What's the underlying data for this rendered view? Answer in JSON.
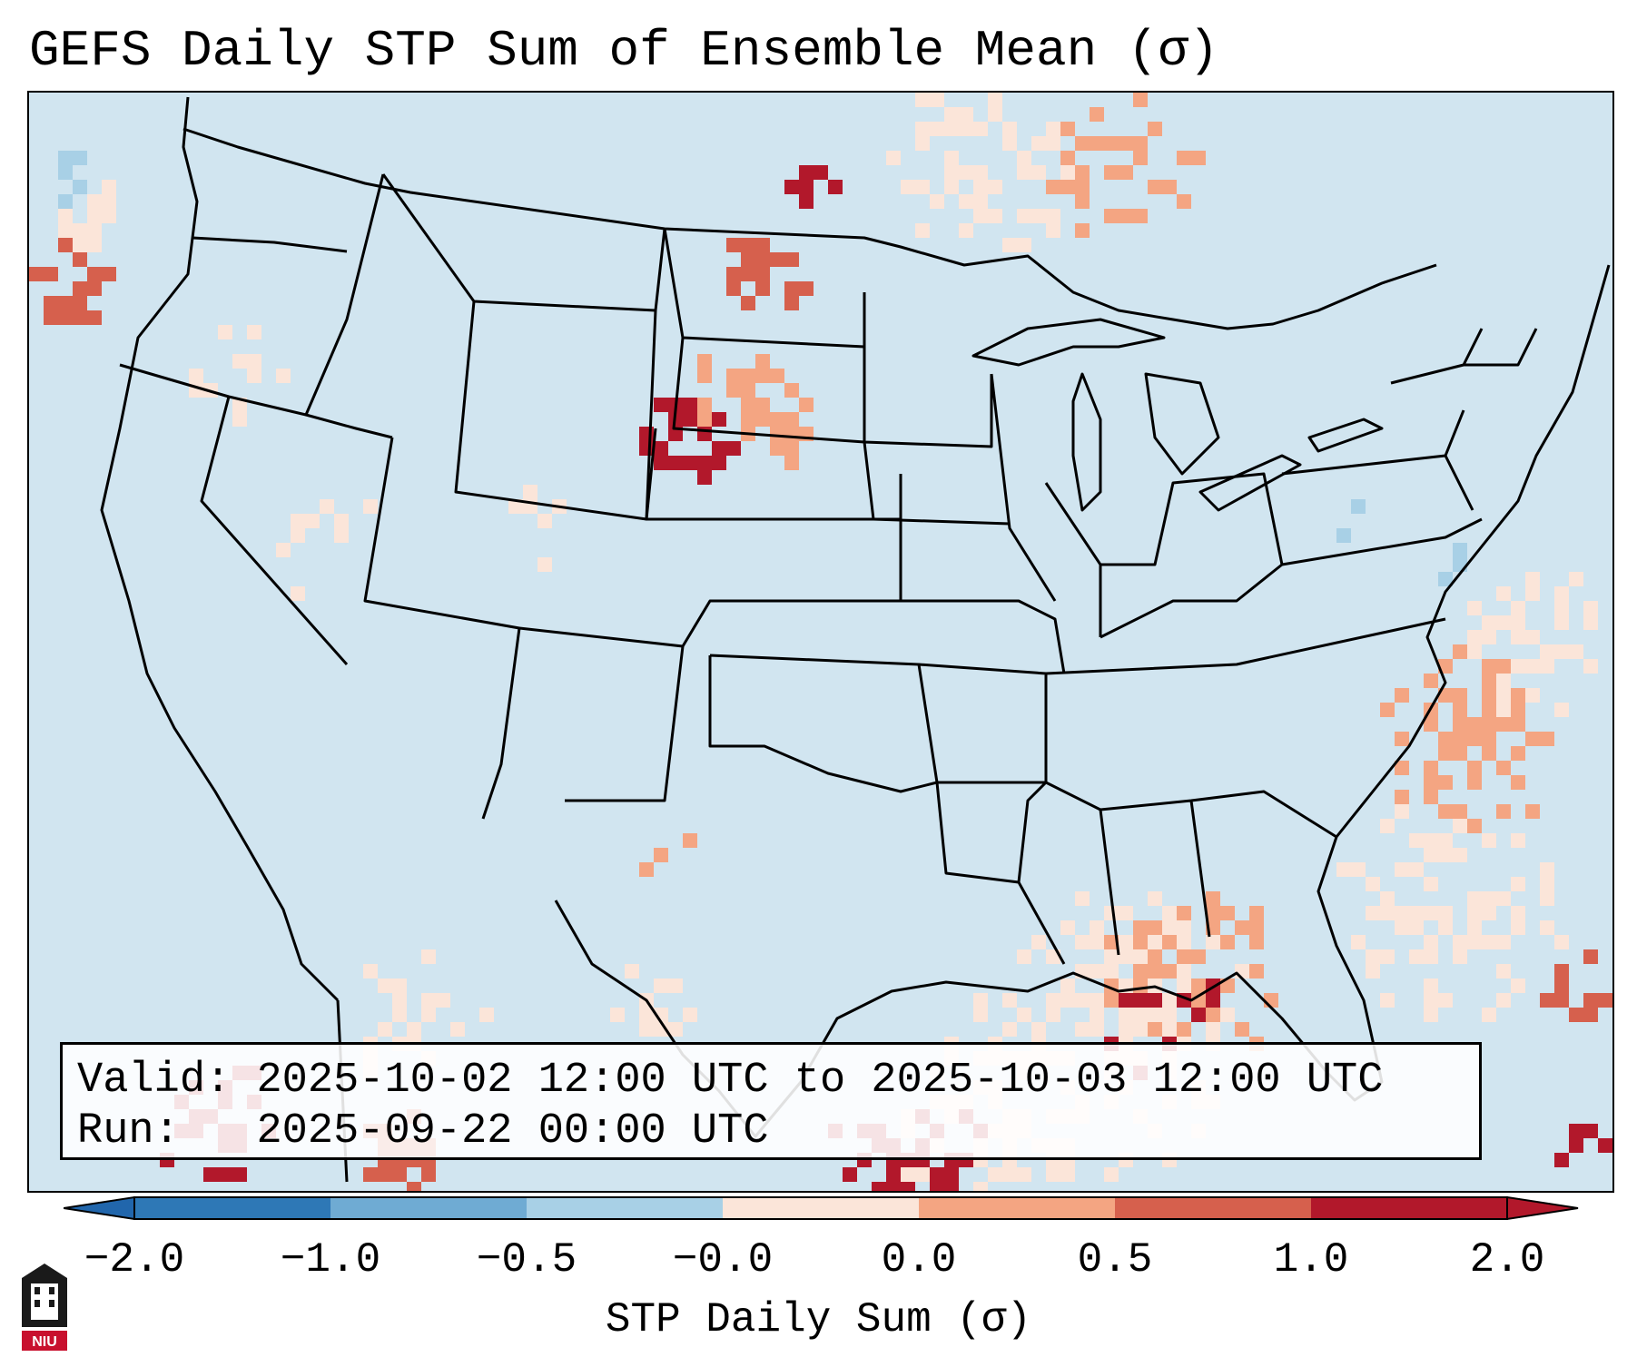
{
  "title": "GEFS Daily STP Sum of Ensemble Mean (σ)",
  "info": {
    "valid_label": "Valid:",
    "valid_value": "2025-10-02 12:00 UTC to 2025-10-03 12:00 UTC",
    "run_label": "Run:",
    "run_value": "2025-09-22 00:00 UTC"
  },
  "colorbar": {
    "label": "STP Daily Sum (σ)",
    "ticks": [
      "−2.0",
      "−1.0",
      "−0.5",
      "−0.0",
      "0.0",
      "0.5",
      "1.0",
      "2.0"
    ],
    "colors": [
      "#2e78b6",
      "#6fabd3",
      "#a8d0e6",
      "#d1e5f0",
      "#fbe5d9",
      "#f4a582",
      "#d6604d",
      "#b2182b"
    ],
    "extend_low_color": "#2166ac",
    "extend_high_color": "#b2182b"
  },
  "map": {
    "background_color": "#d1e5f0",
    "region": "Contiguous United States",
    "highlight_regions": [
      {
        "name": "South Dakota / Nebraska",
        "value": 2.0
      },
      {
        "name": "North Dakota / Minnesota",
        "value": 1.0
      },
      {
        "name": "Central Gulf of Mexico",
        "value": 2.0
      },
      {
        "name": "Western Atlantic",
        "value": 1.0
      },
      {
        "name": "Pacific Northwest coast",
        "value": 1.0
      }
    ]
  },
  "logo": {
    "text": "NIU"
  }
}
